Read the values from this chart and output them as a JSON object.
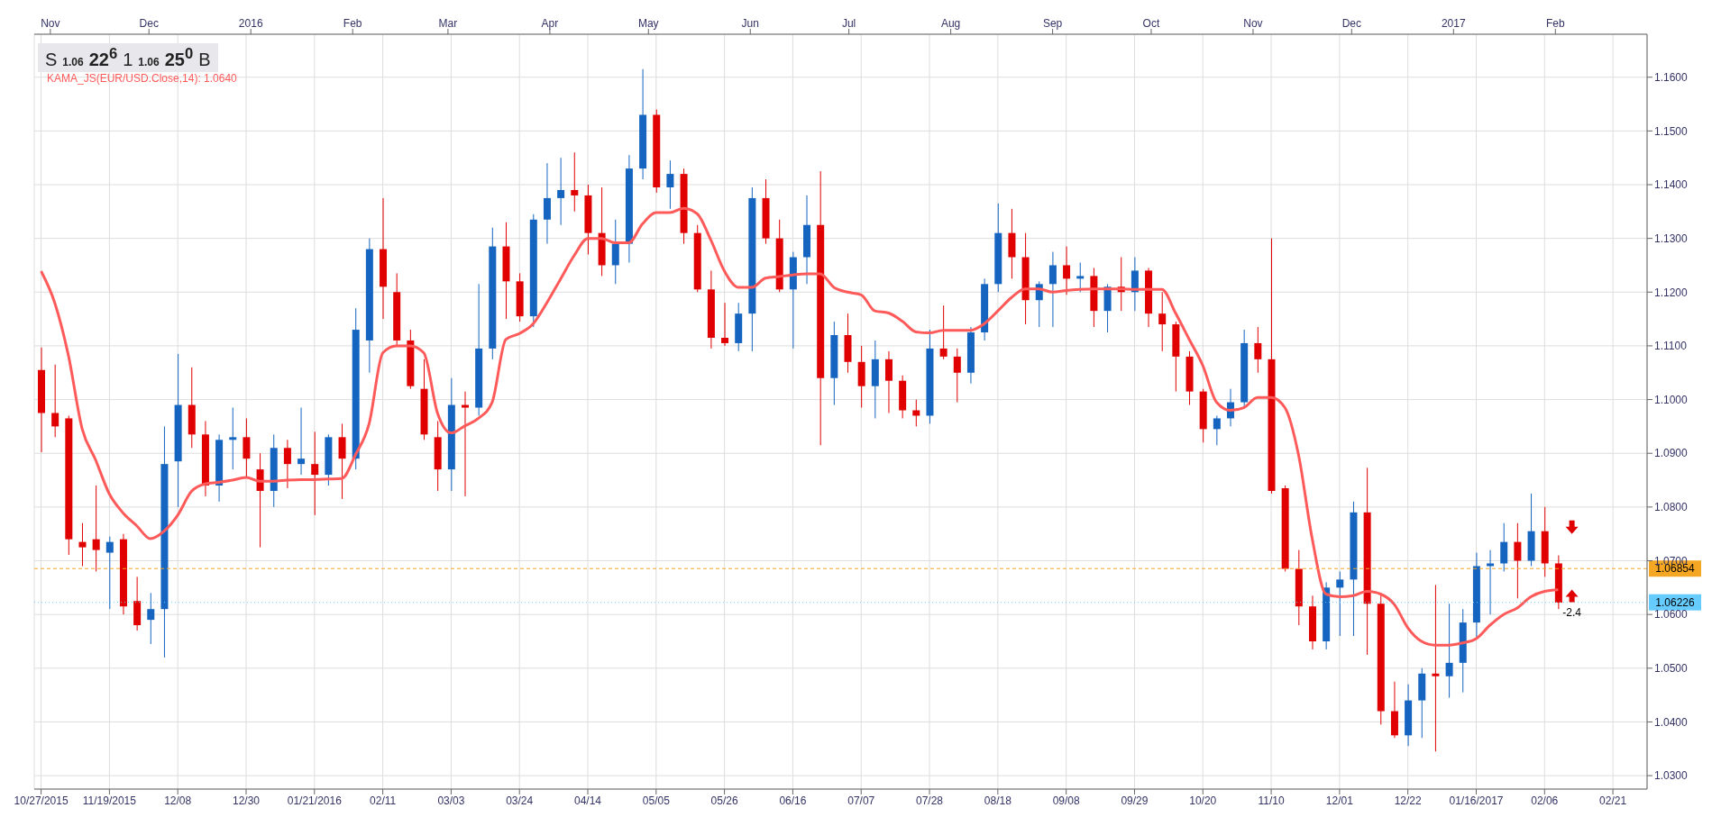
{
  "chart_data": {
    "type": "candlestick",
    "categories": [
      "10/27/2015",
      null,
      null,
      null,
      null,
      "11/19/2015",
      null,
      null,
      null,
      null,
      "12/08",
      null,
      null,
      null,
      null,
      "12/30",
      null,
      null,
      null,
      null,
      "01/21/2016",
      null,
      null,
      null,
      null,
      "02/11",
      null,
      null,
      null,
      null,
      "03/03",
      null,
      null,
      null,
      null,
      "03/24",
      null,
      null,
      null,
      null,
      "04/14",
      null,
      null,
      null,
      null,
      "05/05",
      null,
      null,
      null,
      null,
      "05/26",
      null,
      null,
      null,
      null,
      "06/16",
      null,
      null,
      null,
      null,
      "07/07",
      null,
      null,
      null,
      null,
      "07/28",
      null,
      null,
      null,
      null,
      "08/18",
      null,
      null,
      null,
      null,
      "09/08",
      null,
      null,
      null,
      null,
      "09/29",
      null,
      null,
      null,
      null,
      "10/20",
      null,
      null,
      null,
      null,
      "11/10",
      null,
      null,
      null,
      null,
      "12/01",
      null,
      null,
      null,
      null,
      "12/22",
      null,
      null,
      null,
      null,
      "01/16/2017",
      null,
      null,
      null,
      null,
      "02/06",
      null,
      null,
      null,
      null,
      "02/21",
      null,
      null
    ],
    "ohlc": [
      [
        1.1055,
        1.1097,
        1.0902,
        1.0975
      ],
      [
        1.0975,
        1.1065,
        1.093,
        1.095
      ],
      [
        1.0965,
        1.097,
        1.0711,
        1.074
      ],
      [
        1.0735,
        1.077,
        1.069,
        1.0725
      ],
      [
        1.074,
        1.084,
        1.068,
        1.072
      ],
      [
        1.0715,
        1.0745,
        1.061,
        1.0735
      ],
      [
        1.074,
        1.075,
        1.06,
        1.0615
      ],
      [
        1.0625,
        1.067,
        1.057,
        1.058
      ],
      [
        1.059,
        1.064,
        1.0545,
        1.061
      ],
      [
        1.061,
        1.095,
        1.052,
        1.088
      ],
      [
        1.0885,
        1.1085,
        1.08,
        1.099
      ],
      [
        1.099,
        1.106,
        1.091,
        1.0935
      ],
      [
        1.0935,
        1.096,
        1.082,
        1.084
      ],
      [
        1.084,
        1.0935,
        1.081,
        1.0925
      ],
      [
        1.0925,
        1.0985,
        1.087,
        1.093
      ],
      [
        1.093,
        1.0965,
        1.0855,
        1.089
      ],
      [
        1.087,
        1.09,
        1.0725,
        1.083
      ],
      [
        1.083,
        1.0935,
        1.08,
        1.091
      ],
      [
        1.091,
        1.0925,
        1.0835,
        1.088
      ],
      [
        1.088,
        1.0985,
        1.086,
        1.089
      ],
      [
        1.088,
        1.094,
        1.0785,
        1.086
      ],
      [
        1.086,
        1.0935,
        1.084,
        1.093
      ],
      [
        1.093,
        1.0955,
        1.0815,
        1.089
      ],
      [
        1.089,
        1.117,
        1.087,
        1.113
      ],
      [
        1.111,
        1.13,
        1.105,
        1.128
      ],
      [
        1.128,
        1.1375,
        1.115,
        1.121
      ],
      [
        1.12,
        1.1235,
        1.11,
        1.111
      ],
      [
        1.111,
        1.113,
        1.102,
        1.1025
      ],
      [
        1.102,
        1.1075,
        1.0925,
        1.0935
      ],
      [
        1.093,
        1.096,
        1.083,
        1.087
      ],
      [
        1.087,
        1.104,
        1.083,
        1.099
      ],
      [
        1.099,
        1.1015,
        1.082,
        1.0985
      ],
      [
        1.0985,
        1.1215,
        1.097,
        1.1095
      ],
      [
        1.1095,
        1.132,
        1.1075,
        1.1285
      ],
      [
        1.1285,
        1.133,
        1.115,
        1.122
      ],
      [
        1.122,
        1.1235,
        1.1145,
        1.1155
      ],
      [
        1.1155,
        1.1345,
        1.1135,
        1.1335
      ],
      [
        1.1335,
        1.144,
        1.129,
        1.1375
      ],
      [
        1.1375,
        1.145,
        1.1325,
        1.139
      ],
      [
        1.139,
        1.146,
        1.135,
        1.138
      ],
      [
        1.138,
        1.14,
        1.127,
        1.131
      ],
      [
        1.131,
        1.1395,
        1.123,
        1.125
      ],
      [
        1.125,
        1.1335,
        1.1215,
        1.129
      ],
      [
        1.129,
        1.1455,
        1.1255,
        1.143
      ],
      [
        1.143,
        1.1615,
        1.141,
        1.153
      ],
      [
        1.153,
        1.154,
        1.1385,
        1.1395
      ],
      [
        1.1395,
        1.1445,
        1.1355,
        1.142
      ],
      [
        1.142,
        1.143,
        1.129,
        1.131
      ],
      [
        1.131,
        1.1325,
        1.12,
        1.1205
      ],
      [
        1.1205,
        1.124,
        1.1095,
        1.1115
      ],
      [
        1.1115,
        1.118,
        1.11,
        1.1105
      ],
      [
        1.1105,
        1.118,
        1.109,
        1.116
      ],
      [
        1.116,
        1.1395,
        1.109,
        1.1375
      ],
      [
        1.1375,
        1.141,
        1.129,
        1.13
      ],
      [
        1.13,
        1.1335,
        1.12,
        1.1205
      ],
      [
        1.1205,
        1.1275,
        1.1095,
        1.1265
      ],
      [
        1.1265,
        1.138,
        1.1215,
        1.1325
      ],
      [
        1.1325,
        1.1425,
        1.0915,
        1.104
      ],
      [
        1.104,
        1.1145,
        1.099,
        1.112
      ],
      [
        1.112,
        1.116,
        1.105,
        1.107
      ],
      [
        1.107,
        1.11,
        1.0985,
        1.1025
      ],
      [
        1.1025,
        1.111,
        1.0965,
        1.1075
      ],
      [
        1.1075,
        1.109,
        1.0975,
        1.1035
      ],
      [
        1.1035,
        1.1045,
        1.0965,
        1.098
      ],
      [
        1.098,
        1.1,
        1.095,
        1.097
      ],
      [
        1.097,
        1.113,
        1.0955,
        1.1095
      ],
      [
        1.1095,
        1.1175,
        1.1075,
        1.108
      ],
      [
        1.108,
        1.1095,
        1.0995,
        1.105
      ],
      [
        1.105,
        1.1135,
        1.103,
        1.1125
      ],
      [
        1.1125,
        1.1225,
        1.111,
        1.1215
      ],
      [
        1.1215,
        1.1365,
        1.12,
        1.131
      ],
      [
        1.131,
        1.1355,
        1.1225,
        1.1265
      ],
      [
        1.1265,
        1.131,
        1.114,
        1.1185
      ],
      [
        1.1185,
        1.122,
        1.1135,
        1.1215
      ],
      [
        1.1215,
        1.1275,
        1.1135,
        1.125
      ],
      [
        1.125,
        1.1285,
        1.1195,
        1.1225
      ],
      [
        1.1225,
        1.1255,
        1.12,
        1.123
      ],
      [
        1.123,
        1.1245,
        1.1135,
        1.1165
      ],
      [
        1.1165,
        1.1215,
        1.1125,
        1.121
      ],
      [
        1.121,
        1.1265,
        1.1165,
        1.12
      ],
      [
        1.12,
        1.1265,
        1.1165,
        1.124
      ],
      [
        1.124,
        1.1245,
        1.1135,
        1.116
      ],
      [
        1.116,
        1.12,
        1.109,
        1.114
      ],
      [
        1.114,
        1.1145,
        1.1015,
        1.108
      ],
      [
        1.108,
        1.109,
        1.099,
        1.1015
      ],
      [
        1.1015,
        1.102,
        1.092,
        1.0945
      ],
      [
        1.0945,
        1.097,
        1.0915,
        1.0965
      ],
      [
        1.0965,
        1.102,
        1.095,
        1.0995
      ],
      [
        1.0995,
        1.113,
        1.0985,
        1.1105
      ],
      [
        1.1105,
        1.1135,
        1.105,
        1.1075
      ],
      [
        1.1075,
        1.13,
        1.0825,
        1.083
      ],
      [
        1.0835,
        1.084,
        1.068,
        1.0685
      ],
      [
        1.0685,
        1.072,
        1.058,
        1.0615
      ],
      [
        1.0615,
        1.0635,
        1.0535,
        1.055
      ],
      [
        1.055,
        1.066,
        1.0535,
        1.065
      ],
      [
        1.065,
        1.068,
        1.056,
        1.0665
      ],
      [
        1.0665,
        1.081,
        1.056,
        1.079
      ],
      [
        1.079,
        1.0873,
        1.0525,
        1.062
      ],
      [
        1.062,
        1.064,
        1.0395,
        1.042
      ],
      [
        1.042,
        1.0475,
        1.037,
        1.0375
      ],
      [
        1.0375,
        1.047,
        1.0355,
        1.044
      ],
      [
        1.044,
        1.05,
        1.037,
        1.049
      ],
      [
        1.049,
        1.0655,
        1.0345,
        1.0485
      ],
      [
        1.0485,
        1.062,
        1.0445,
        1.051
      ],
      [
        1.051,
        1.061,
        1.0455,
        1.0585
      ],
      [
        1.0585,
        1.0715,
        1.0555,
        1.069
      ],
      [
        1.069,
        1.072,
        1.06,
        1.0695
      ],
      [
        1.0695,
        1.077,
        1.068,
        1.0735
      ],
      [
        1.0735,
        1.077,
        1.063,
        1.07
      ],
      [
        1.07,
        1.0825,
        1.069,
        1.0755
      ],
      [
        1.0755,
        1.08,
        1.067,
        1.0695
      ],
      [
        1.0695,
        1.071,
        1.061,
        1.0622
      ],
      null,
      null,
      null,
      null,
      null,
      null
    ],
    "colors": [
      "#e00000",
      "#e00000",
      "#e00000",
      "#e00000",
      "#e00000",
      "#1565c0",
      "#e00000",
      "#e00000",
      "#1565c0",
      "#1565c0",
      "#1565c0",
      "#e00000",
      "#e00000",
      "#1565c0",
      "#1565c0",
      "#e00000",
      "#e00000",
      "#1565c0",
      "#e00000",
      "#1565c0",
      "#e00000",
      "#1565c0",
      "#e00000",
      "#1565c0",
      "#1565c0",
      "#e00000",
      "#e00000",
      "#e00000",
      "#e00000",
      "#e00000",
      "#1565c0",
      "#e00000",
      "#1565c0",
      "#1565c0",
      "#e00000",
      "#e00000",
      "#1565c0",
      "#1565c0",
      "#1565c0",
      "#e00000",
      "#e00000",
      "#e00000",
      "#1565c0",
      "#1565c0",
      "#1565c0",
      "#e00000",
      "#1565c0",
      "#e00000",
      "#e00000",
      "#e00000",
      "#e00000",
      "#1565c0",
      "#1565c0",
      "#e00000",
      "#e00000",
      "#1565c0",
      "#1565c0",
      "#e00000",
      "#1565c0",
      "#e00000",
      "#e00000",
      "#1565c0",
      "#e00000",
      "#e00000",
      "#e00000",
      "#1565c0",
      "#e00000",
      "#e00000",
      "#1565c0",
      "#1565c0",
      "#1565c0",
      "#e00000",
      "#e00000",
      "#1565c0",
      "#1565c0",
      "#e00000",
      "#1565c0",
      "#e00000",
      "#1565c0",
      "#e00000",
      "#1565c0",
      "#e00000",
      "#e00000",
      "#e00000",
      "#e00000",
      "#e00000",
      "#1565c0",
      "#1565c0",
      "#1565c0",
      "#e00000",
      "#e00000",
      "#e00000",
      "#e00000",
      "#e00000",
      "#1565c0",
      "#1565c0",
      "#1565c0",
      "#e00000",
      "#e00000",
      "#e00000",
      "#1565c0",
      "#1565c0",
      "#e00000",
      "#1565c0",
      "#1565c0",
      "#1565c0",
      "#1565c0",
      "#1565c0",
      "#e00000",
      "#1565c0",
      "#e00000",
      "#e00000",
      null,
      null,
      null,
      null,
      null,
      null
    ],
    "series": [
      {
        "type": "line",
        "name": "KAMA_JS(EUR/USD.Close,14): 1.0640",
        "color": "#ff5a5a",
        "values": [
          1.1239,
          1.118,
          1.1082,
          1.0946,
          1.0887,
          1.0824,
          1.0789,
          1.0765,
          1.0741,
          1.0755,
          1.0785,
          1.0829,
          1.0843,
          1.0846,
          1.085,
          1.0855,
          1.0848,
          1.0848,
          1.085,
          1.0851,
          1.0851,
          1.0852,
          1.0853,
          1.0897,
          1.0955,
          1.1087,
          1.11,
          1.11,
          1.1087,
          1.0975,
          1.0938,
          1.0951,
          1.0965,
          1.0995,
          1.1112,
          1.1123,
          1.1141,
          1.118,
          1.1224,
          1.1268,
          1.13,
          1.13,
          1.1292,
          1.1292,
          1.1327,
          1.1348,
          1.1348,
          1.1356,
          1.1346,
          1.1297,
          1.1239,
          1.1209,
          1.1209,
          1.1226,
          1.1229,
          1.1232,
          1.1234,
          1.1234,
          1.1209,
          1.12,
          1.1195,
          1.1165,
          1.1161,
          1.1146,
          1.1126,
          1.1124,
          1.1129,
          1.1129,
          1.1129,
          1.1141,
          1.1165,
          1.119,
          1.1206,
          1.1206,
          1.12,
          1.1203,
          1.1205,
          1.1206,
          1.1206,
          1.1206,
          1.1205,
          1.1205,
          1.1205,
          1.1161,
          1.1112,
          1.1063,
          1.0995,
          1.098,
          1.0985,
          1.1004,
          1.1004,
          1.0985,
          1.0897,
          1.0741,
          1.0638,
          1.0633,
          1.0635,
          1.0643,
          1.0638,
          1.0619,
          1.0575,
          1.055,
          1.0543,
          1.0543,
          1.0547,
          1.0555,
          1.058,
          1.06,
          1.0612,
          1.0633,
          1.0643,
          1.0646,
          null,
          null,
          null,
          null,
          null,
          null
        ]
      }
    ],
    "ylim": [
      1.0275,
      1.168
    ],
    "yticks": [
      {
        "value": 1.03,
        "label": "1.0300"
      },
      {
        "value": 1.04,
        "label": "1.0400"
      },
      {
        "value": 1.05,
        "label": "1.0500"
      },
      {
        "value": 1.06,
        "label": "1.0600"
      },
      {
        "value": 1.07,
        "label": "1.0700"
      },
      {
        "value": 1.08,
        "label": "1.0800"
      },
      {
        "value": 1.09,
        "label": "1.0900"
      },
      {
        "value": 1.1,
        "label": "1.1000"
      },
      {
        "value": 1.11,
        "label": "1.1100"
      },
      {
        "value": 1.12,
        "label": "1.1200"
      },
      {
        "value": 1.13,
        "label": "1.1300"
      },
      {
        "value": 1.14,
        "label": "1.1400"
      },
      {
        "value": 1.15,
        "label": "1.1500"
      },
      {
        "value": 1.16,
        "label": "1.1600"
      }
    ],
    "x2lim": [
      "2015-10-25",
      "2017-03-03"
    ],
    "x2ticks": [
      {
        "value": "2015-11",
        "label": "Nov"
      },
      {
        "value": "2015-12",
        "label": "Dec"
      },
      {
        "value": "2016-01",
        "label": "2016"
      },
      {
        "value": "2016-02",
        "label": "Feb"
      },
      {
        "value": "2016-03",
        "label": "Mar"
      },
      {
        "value": "2016-04",
        "label": "Apr"
      },
      {
        "value": "2016-05",
        "label": "May"
      },
      {
        "value": "2016-06",
        "label": "Jun"
      },
      {
        "value": "2016-07",
        "label": "Jul"
      },
      {
        "value": "2016-08",
        "label": "Aug"
      },
      {
        "value": "2016-09",
        "label": "Sep"
      },
      {
        "value": "2016-10",
        "label": "Oct"
      },
      {
        "value": "2016-11",
        "label": "Nov"
      },
      {
        "value": "2016-12",
        "label": "Dec"
      },
      {
        "value": "2017-01",
        "label": "2017"
      },
      {
        "value": "2017-02",
        "label": "Feb"
      }
    ],
    "ref_lines": [
      {
        "axis": "y",
        "value": 1.06854,
        "label": "1.06854",
        "color": "#f5a623",
        "line_style": "dashed"
      },
      {
        "axis": "y",
        "value": 1.06226,
        "label": "1.06226",
        "color": "#66ccff",
        "line_style": "dotted"
      }
    ],
    "annotations": [
      "S",
      "1.06",
      "22$^{6}$",
      "1",
      "1.06",
      "25$^{0}$",
      "B",
      "-2.4"
    ],
    "grid": true,
    "legend": "top left"
  }
}
